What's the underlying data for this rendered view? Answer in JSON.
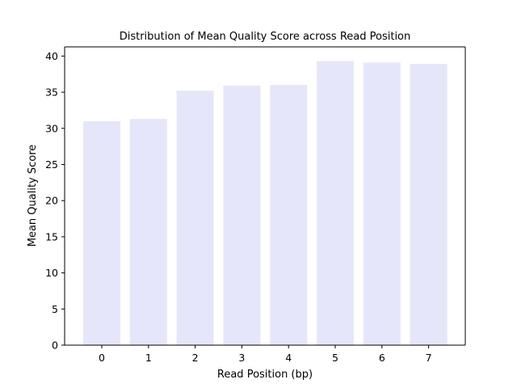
{
  "chart_data": {
    "type": "bar",
    "title": "Distribution of Mean Quality Score across Read Position",
    "xlabel": "Read Position (bp)",
    "ylabel": "Mean Quality Score",
    "categories": [
      "0",
      "1",
      "2",
      "3",
      "4",
      "5",
      "6",
      "7"
    ],
    "values": [
      31.0,
      31.3,
      35.2,
      35.9,
      36.0,
      39.3,
      39.1,
      38.9
    ],
    "ylim": [
      0,
      41.27
    ],
    "yticks": [
      0,
      5,
      10,
      15,
      20,
      25,
      30,
      35,
      40
    ],
    "bar_color": "#e6e6fa",
    "grid": false,
    "legend": "none"
  }
}
